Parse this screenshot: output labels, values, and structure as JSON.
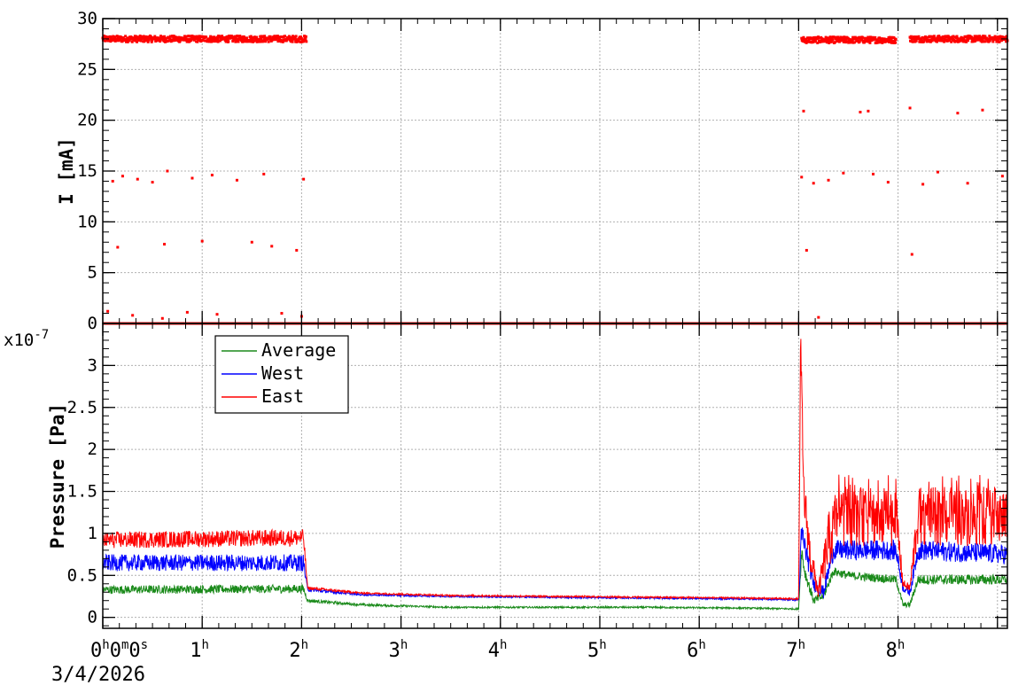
{
  "chart_data": [
    {
      "panel": "current",
      "type": "scatter",
      "ylabel": "I [mA]",
      "ylim": [
        0,
        30
      ],
      "yticks": [
        "0",
        "5",
        "10",
        "15",
        "20",
        "25",
        "30"
      ],
      "xlim_hours": [
        0,
        9.1
      ],
      "grid": true,
      "color": "#ff0000",
      "segments": [
        {
          "x_start_h": 0.0,
          "x_end_h": 2.05,
          "level": 28.0
        },
        {
          "x_start_h": 7.03,
          "x_end_h": 7.98,
          "level": 27.9
        },
        {
          "x_start_h": 8.12,
          "x_end_h": 9.1,
          "level": 28.0
        }
      ],
      "outliers": [
        {
          "x": 0.05,
          "y": 1.2
        },
        {
          "x": 0.1,
          "y": 14.0
        },
        {
          "x": 0.15,
          "y": 7.5
        },
        {
          "x": 0.2,
          "y": 14.5
        },
        {
          "x": 0.3,
          "y": 0.8
        },
        {
          "x": 0.35,
          "y": 14.2
        },
        {
          "x": 0.5,
          "y": 13.9
        },
        {
          "x": 0.6,
          "y": 0.5
        },
        {
          "x": 0.62,
          "y": 7.8
        },
        {
          "x": 0.65,
          "y": 15.0
        },
        {
          "x": 0.85,
          "y": 1.1
        },
        {
          "x": 0.9,
          "y": 14.3
        },
        {
          "x": 1.0,
          "y": 8.1
        },
        {
          "x": 1.1,
          "y": 14.6
        },
        {
          "x": 1.15,
          "y": 0.9
        },
        {
          "x": 1.35,
          "y": 14.1
        },
        {
          "x": 1.5,
          "y": 8.0
        },
        {
          "x": 1.62,
          "y": 14.7
        },
        {
          "x": 1.7,
          "y": 7.6
        },
        {
          "x": 1.8,
          "y": 1.0
        },
        {
          "x": 1.95,
          "y": 7.2
        },
        {
          "x": 2.02,
          "y": 14.2
        },
        {
          "x": 2.0,
          "y": 0.7
        },
        {
          "x": 7.03,
          "y": 14.4
        },
        {
          "x": 7.05,
          "y": 20.9
        },
        {
          "x": 7.08,
          "y": 7.2
        },
        {
          "x": 7.15,
          "y": 13.8
        },
        {
          "x": 7.2,
          "y": 0.6
        },
        {
          "x": 7.3,
          "y": 14.1
        },
        {
          "x": 7.45,
          "y": 14.8
        },
        {
          "x": 7.62,
          "y": 20.8
        },
        {
          "x": 7.7,
          "y": 20.9
        },
        {
          "x": 7.75,
          "y": 14.7
        },
        {
          "x": 7.9,
          "y": 13.9
        },
        {
          "x": 8.12,
          "y": 21.2
        },
        {
          "x": 8.14,
          "y": 6.8
        },
        {
          "x": 8.25,
          "y": 13.7
        },
        {
          "x": 8.4,
          "y": 14.9
        },
        {
          "x": 8.6,
          "y": 20.7
        },
        {
          "x": 8.7,
          "y": 13.8
        },
        {
          "x": 8.85,
          "y": 21.0
        },
        {
          "x": 9.05,
          "y": 14.5
        }
      ]
    },
    {
      "panel": "pressure",
      "type": "line",
      "ylabel": "Pressure [Pa]",
      "y_exponent": "x10",
      "y_exponent_power": "-7",
      "ylim": [
        -0.13,
        3.5
      ],
      "yticks": [
        "0",
        "0.5",
        "1",
        "1.5",
        "2",
        "2.5",
        "3"
      ],
      "xlim_hours": [
        0,
        9.1
      ],
      "grid": true,
      "legend_position": "top-left",
      "series": [
        {
          "name": "Average",
          "color": "#1a8a1a",
          "x": [
            0,
            2.02,
            2.06,
            2.6,
            3.5,
            4.5,
            5.5,
            6.5,
            7.0,
            7.03,
            7.06,
            7.15,
            7.25,
            7.35,
            7.5,
            7.98,
            8.05,
            8.12,
            8.2,
            9.1
          ],
          "y": [
            0.33,
            0.34,
            0.2,
            0.15,
            0.12,
            0.12,
            0.12,
            0.11,
            0.1,
            0.8,
            0.55,
            0.2,
            0.25,
            0.55,
            0.5,
            0.45,
            0.15,
            0.15,
            0.45,
            0.45
          ],
          "noise": [
            0.05,
            0.05,
            0.02,
            0.015,
            0.01,
            0.01,
            0.01,
            0.01,
            0.01,
            0.1,
            0.08,
            0.05,
            0.05,
            0.05,
            0.05,
            0.05,
            0.03,
            0.03,
            0.06,
            0.06
          ]
        },
        {
          "name": "West",
          "color": "#0000ff",
          "x": [
            0,
            2.02,
            2.06,
            2.6,
            3.5,
            4.5,
            5.5,
            6.5,
            7.0,
            7.03,
            7.06,
            7.15,
            7.25,
            7.35,
            7.5,
            7.98,
            8.05,
            8.12,
            8.2,
            9.1
          ],
          "y": [
            0.65,
            0.65,
            0.33,
            0.27,
            0.25,
            0.24,
            0.23,
            0.22,
            0.21,
            1.0,
            0.85,
            0.4,
            0.3,
            0.8,
            0.8,
            0.8,
            0.35,
            0.3,
            0.8,
            0.75
          ],
          "noise": [
            0.1,
            0.1,
            0.02,
            0.01,
            0.01,
            0.01,
            0.01,
            0.01,
            0.01,
            0.2,
            0.15,
            0.08,
            0.08,
            0.12,
            0.12,
            0.12,
            0.05,
            0.05,
            0.12,
            0.12
          ]
        },
        {
          "name": "East",
          "color": "#ff0000",
          "x": [
            0,
            2.02,
            2.06,
            2.6,
            3.5,
            4.5,
            5.5,
            6.5,
            7.0,
            7.02,
            7.05,
            7.12,
            7.2,
            7.3,
            7.4,
            7.98,
            8.05,
            8.12,
            8.2,
            9.1
          ],
          "y": [
            0.92,
            0.95,
            0.35,
            0.29,
            0.26,
            0.25,
            0.24,
            0.23,
            0.22,
            3.3,
            1.5,
            0.7,
            0.3,
            0.9,
            1.2,
            1.2,
            0.4,
            0.35,
            1.2,
            1.2
          ],
          "noise": [
            0.1,
            0.1,
            0.02,
            0.01,
            0.01,
            0.01,
            0.01,
            0.01,
            0.01,
            0.2,
            0.3,
            0.2,
            0.1,
            0.35,
            0.35,
            0.35,
            0.05,
            0.05,
            0.35,
            0.35
          ]
        }
      ]
    }
  ],
  "x_axis": {
    "tick_labels": [
      {
        "hour": 0,
        "base": "0",
        "sup": "h",
        "rest": [
          {
            "base": "0",
            "sup": "m"
          },
          {
            "base": "0",
            "sup": "s"
          }
        ]
      },
      {
        "hour": 1,
        "base": "1",
        "sup": "h"
      },
      {
        "hour": 2,
        "base": "2",
        "sup": "h"
      },
      {
        "hour": 3,
        "base": "3",
        "sup": "h"
      },
      {
        "hour": 4,
        "base": "4",
        "sup": "h"
      },
      {
        "hour": 5,
        "base": "5",
        "sup": "h"
      },
      {
        "hour": 6,
        "base": "6",
        "sup": "h"
      },
      {
        "hour": 7,
        "base": "7",
        "sup": "h"
      },
      {
        "hour": 8,
        "base": "8",
        "sup": "h"
      }
    ],
    "date": "3/4/2026"
  }
}
